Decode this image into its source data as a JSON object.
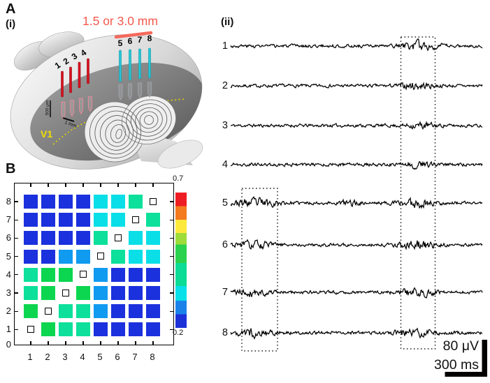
{
  "panels": {
    "a_label": "A",
    "a_sub": "(i)",
    "ii_label": "(ii)",
    "b_label": "B"
  },
  "brain": {
    "distance_label": "1.5 or 3.0 mm",
    "v1_label": "V1",
    "depth_scale_label": "500 μm",
    "spacing_scale_label": "1 mm",
    "red_electrode_labels": [
      "1",
      "2",
      "3",
      "4"
    ],
    "cyan_electrode_labels": [
      "5",
      "6",
      "7",
      "8"
    ],
    "colors": {
      "red_electrode": "#d8121f",
      "cyan_electrode": "#25c8d8",
      "accent_salmon": "#f4695c",
      "v1_yellow": "#efe000"
    }
  },
  "traces": {
    "labels": [
      "1",
      "2",
      "3",
      "4",
      "5",
      "6",
      "7",
      "8"
    ],
    "scale_voltage": "80 μV",
    "scale_time": "300 ms",
    "bursts": [
      [
        {
          "pos": 0.75,
          "width": 0.05,
          "gain": 2.3
        }
      ],
      [
        {
          "pos": 0.74,
          "width": 0.045,
          "gain": 1.7
        }
      ],
      [
        {
          "pos": 0.76,
          "width": 0.04,
          "gain": 1.4
        }
      ],
      [
        {
          "pos": 0.74,
          "width": 0.04,
          "gain": 1.3
        }
      ],
      [
        {
          "pos": 0.1,
          "width": 0.055,
          "gain": 2.4
        },
        {
          "pos": 0.47,
          "width": 0.03,
          "gain": 1.2
        },
        {
          "pos": 0.74,
          "width": 0.05,
          "gain": 2.4
        }
      ],
      [
        {
          "pos": 0.09,
          "width": 0.05,
          "gain": 1.9
        },
        {
          "pos": 0.75,
          "width": 0.05,
          "gain": 2.2
        }
      ],
      [
        {
          "pos": 0.08,
          "width": 0.05,
          "gain": 1.9
        },
        {
          "pos": 0.74,
          "width": 0.05,
          "gain": 2.0
        }
      ],
      [
        {
          "pos": 0.09,
          "width": 0.05,
          "gain": 2.0
        },
        {
          "pos": 0.73,
          "width": 0.05,
          "gain": 2.0
        }
      ]
    ]
  },
  "chart_data": {
    "type": "heatmap",
    "title": "",
    "xlabel": "",
    "ylabel": "",
    "x_tick_labels": [
      "1",
      "2",
      "3",
      "4",
      "5",
      "6",
      "7",
      "8"
    ],
    "y_tick_labels": [
      "0",
      "1",
      "2",
      "3",
      "4",
      "5",
      "6",
      "7",
      "8"
    ],
    "diagonal_marker": "open-square",
    "colorbar": {
      "min": 0.2,
      "max": 0.7,
      "tick_labels": [
        "0.7",
        "0.2"
      ],
      "stops": [
        {
          "color": "#ee1d23",
          "to": 0.1
        },
        {
          "color": "#f47b20",
          "to": 0.2
        },
        {
          "color": "#fde93c",
          "to": 0.3
        },
        {
          "color": "#9edc3a",
          "to": 0.385
        },
        {
          "color": "#2bd24d",
          "to": 0.52
        },
        {
          "color": "#0cdc96",
          "to": 0.69
        },
        {
          "color": "#0ae0e8",
          "to": 0.8
        },
        {
          "color": "#1b82ea",
          "to": 0.9
        },
        {
          "color": "#1c31d8",
          "to": 1.0
        }
      ]
    },
    "color_scale": [
      {
        "max": 0.26,
        "color": "#1b31dd"
      },
      {
        "max": 0.33,
        "color": "#109af0"
      },
      {
        "max": 0.4,
        "color": "#0adfe8"
      },
      {
        "max": 0.455,
        "color": "#0ce09a"
      },
      {
        "max": 1.0,
        "color": "#0cd650"
      }
    ],
    "rows": [
      {
        "y": 8,
        "values": [
          0.23,
          0.23,
          0.23,
          0.23,
          0.36,
          0.36,
          0.43,
          null
        ]
      },
      {
        "y": 7,
        "values": [
          0.23,
          0.23,
          0.23,
          0.23,
          0.36,
          0.36,
          null,
          0.43
        ]
      },
      {
        "y": 6,
        "values": [
          0.23,
          0.23,
          0.23,
          0.23,
          0.43,
          null,
          0.36,
          0.36
        ]
      },
      {
        "y": 5,
        "values": [
          0.23,
          0.23,
          0.3,
          0.3,
          null,
          0.43,
          0.36,
          0.36
        ]
      },
      {
        "y": 4,
        "values": [
          0.43,
          0.48,
          0.48,
          null,
          0.3,
          0.23,
          0.23,
          0.23
        ]
      },
      {
        "y": 3,
        "values": [
          0.43,
          0.48,
          null,
          0.48,
          0.3,
          0.23,
          0.23,
          0.23
        ]
      },
      {
        "y": 2,
        "values": [
          0.48,
          null,
          0.43,
          0.43,
          0.3,
          0.23,
          0.23,
          0.23
        ]
      },
      {
        "y": 1,
        "values": [
          null,
          0.48,
          0.43,
          0.43,
          0.23,
          0.23,
          0.23,
          0.23
        ]
      }
    ]
  }
}
